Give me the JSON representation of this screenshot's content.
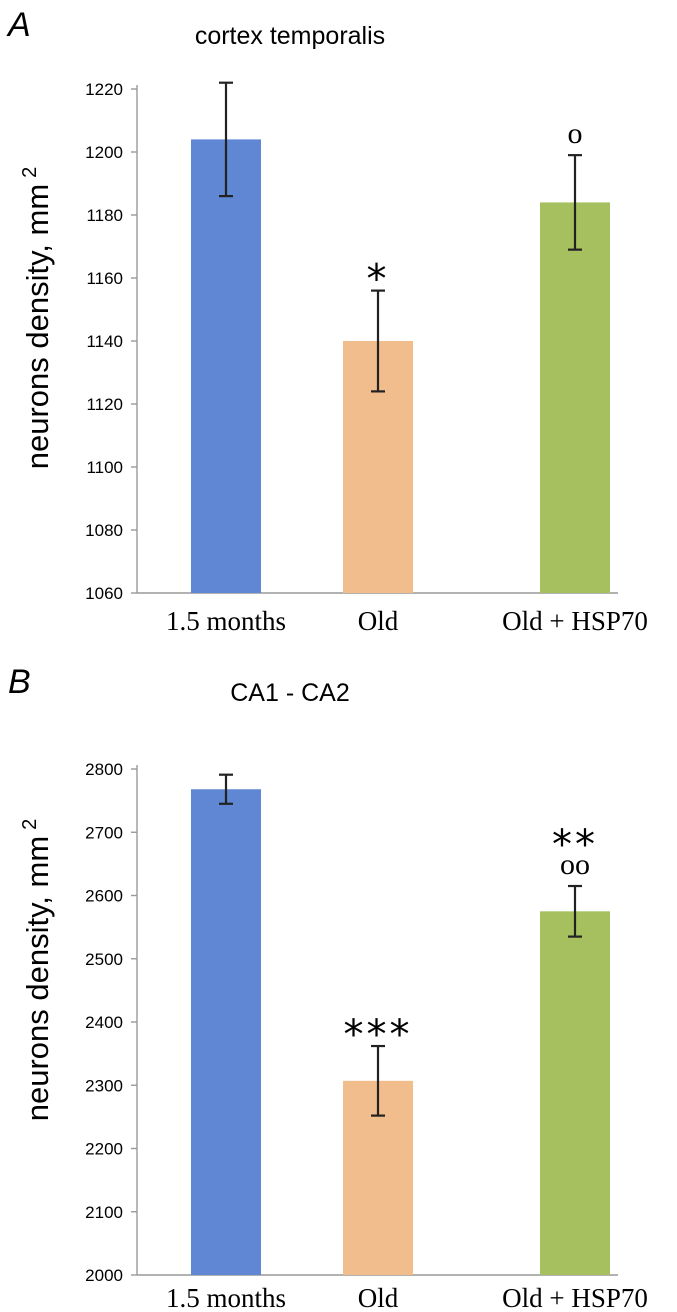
{
  "chart_data": [
    {
      "type": "bar",
      "panel_letter": "A",
      "title": "cortex temporalis",
      "ylabel": "neurons density, mm",
      "ylabel_superscript": "2",
      "xlabel": "",
      "categories": [
        "1.5 months",
        "Old",
        "Old + HSP70"
      ],
      "values": [
        1204,
        1140,
        1184
      ],
      "errors": [
        18,
        16,
        15
      ],
      "colors": [
        "#5f87d4",
        "#f2bd8d",
        "#a6c060"
      ],
      "annotations": [
        [],
        [
          "*"
        ],
        [
          "o"
        ]
      ],
      "ylim": [
        1060,
        1220
      ],
      "yticks": [
        1060,
        1080,
        1100,
        1120,
        1140,
        1160,
        1180,
        1200,
        1220
      ],
      "grid": false
    },
    {
      "type": "bar",
      "panel_letter": "B",
      "title": "CA1 - CA2",
      "ylabel": "neurons density, mm",
      "ylabel_superscript": "2",
      "xlabel": "",
      "categories": [
        "1.5 months",
        "Old",
        "Old + HSP70"
      ],
      "values": [
        2768,
        2307,
        2575
      ],
      "errors": [
        23,
        55,
        40
      ],
      "colors": [
        "#5f87d4",
        "#f2bd8d",
        "#a6c060"
      ],
      "annotations": [
        [],
        [
          "***"
        ],
        [
          "**",
          "oo"
        ]
      ],
      "ylim": [
        2000,
        2800
      ],
      "yticks": [
        2000,
        2100,
        2200,
        2300,
        2400,
        2500,
        2600,
        2700,
        2800
      ],
      "grid": false
    }
  ]
}
